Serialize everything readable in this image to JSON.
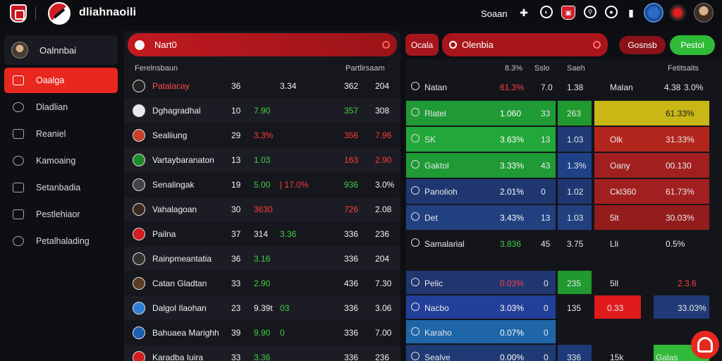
{
  "topbar": {
    "brand": "dliahnaoili",
    "search_label": "Soaan"
  },
  "sidebar": {
    "user": "Oalnnbai",
    "items": [
      {
        "label": "Oaalga",
        "active": true
      },
      {
        "label": "Dladlian"
      },
      {
        "label": "Reaniel"
      },
      {
        "label": "Kamoaing"
      },
      {
        "label": "Setanbadia"
      },
      {
        "label": "Pestlehiaor"
      },
      {
        "label": "Petalhalading"
      }
    ]
  },
  "left": {
    "title": "Nart0",
    "col_a": "Ferelnsbaun",
    "col_b": "Partlirsaam",
    "rows": [
      {
        "name": "Patalacay",
        "c1": "36",
        "c2": "",
        "c3": "3.34",
        "c4": "362",
        "c5": "204"
      },
      {
        "name": "Dghagradhal",
        "c1": "10",
        "c2": "7.90",
        "c3": "",
        "c4": "357",
        "c5": "308"
      },
      {
        "name": "Sealiiung",
        "c1": "29",
        "c2": "3.3%",
        "c3": "",
        "c4": "356",
        "c5": "7.96"
      },
      {
        "name": "Vartaybaranaton",
        "c1": "13",
        "c2": "1.03",
        "c3": "",
        "c4": "163",
        "c5": "2.90"
      },
      {
        "name": "Senalingak",
        "c1": "19",
        "c2": "5.00",
        "c3": "| 17.0%",
        "c4": "936",
        "c5": "3.0%"
      },
      {
        "name": "Vahalagoan",
        "c1": "30",
        "c2": "3630",
        "c3": "",
        "c4": "726",
        "c5": "2.08"
      },
      {
        "name": "Pailna",
        "c1": "37",
        "c2": "314",
        "c3": "3.36",
        "c4": "336",
        "c5": "236"
      },
      {
        "name": "Rainpmeantatia",
        "c1": "36",
        "c2": "3.16",
        "c3": "",
        "c4": "336",
        "c5": "204"
      },
      {
        "name": "Catan Gladtan",
        "c1": "33",
        "c2": "2.90",
        "c3": "",
        "c4": "436",
        "c5": "7.30"
      },
      {
        "name": "Dalgol Ilaohan",
        "c1": "23",
        "c2": "9.39t",
        "c3": "03",
        "c4": "336",
        "c5": "3.06"
      },
      {
        "name": "Bahuaea Marighh",
        "c1": "39",
        "c2": "9.90",
        "c3": "0",
        "c4": "336",
        "c5": "7.00"
      },
      {
        "name": "Karadba Iuira",
        "c1": "33",
        "c2": "3.36",
        "c3": "",
        "c4": "336",
        "c5": "236"
      }
    ]
  },
  "right": {
    "tab1": "Ocala",
    "tab2": "Olenbia",
    "btn1": "Gosnsb",
    "btn2": "Pestol",
    "headers": [
      "8.3%",
      "Sslo",
      "Saeh",
      "Fetitsaits"
    ],
    "rows_top": [
      {
        "name": "Natan",
        "v1": "61.3%",
        "v2": "7.0",
        "v3": "1.38",
        "n2": "Malan",
        "v4": "4.38",
        "v5": "3.0%"
      },
      {
        "name": "Rlatel",
        "v1": "1.060",
        "v2": "33",
        "v3": "263",
        "n2": "",
        "v4": "",
        "v5": "61.33%"
      },
      {
        "name": "SK",
        "v1": "3.63%",
        "v2": "13",
        "v3": "1.03",
        "n2": "Olk",
        "v4": "",
        "v5": "31.33%"
      },
      {
        "name": "Gaktol",
        "v1": "3.33%",
        "v2": "43",
        "v3": "1.3%",
        "n2": "Oany",
        "v4": "",
        "v5": "00.130"
      },
      {
        "name": "Panolioh",
        "v1": "2.01%",
        "v2": "0",
        "v3": "1.02",
        "n2": "Ckl360",
        "v4": "",
        "v5": "61.73%"
      },
      {
        "name": "Det",
        "v1": "3.43%",
        "v2": "13",
        "v3": "1.03",
        "n2": "5lt",
        "v4": "",
        "v5": "30.03%"
      },
      {
        "name": "Samalarial",
        "v1": "3.836",
        "v2": "45",
        "v3": "3.75",
        "n2": "Lli",
        "v4": "",
        "v5": "0.5%"
      }
    ],
    "rows_bottom": [
      {
        "name": "Pelic",
        "v1": "0.03%",
        "v2": "0",
        "v3": "235",
        "n2": "5ll",
        "v4": "",
        "v5": "2.3.6"
      },
      {
        "name": "Nacbo",
        "v1": "3.03%",
        "v2": "0",
        "v3": "135",
        "n2": "",
        "v4": "0.33",
        "v5": "33.03%"
      },
      {
        "name": "Karaho",
        "v1": "0.07%",
        "v2": "0",
        "v3": "",
        "n2": "",
        "v4": "",
        "v5": ""
      },
      {
        "name": "Sealve",
        "v1": "0.00%",
        "v2": "0",
        "v3": "336",
        "n2": "15k",
        "v4": "",
        "v5": "Galas"
      }
    ]
  }
}
